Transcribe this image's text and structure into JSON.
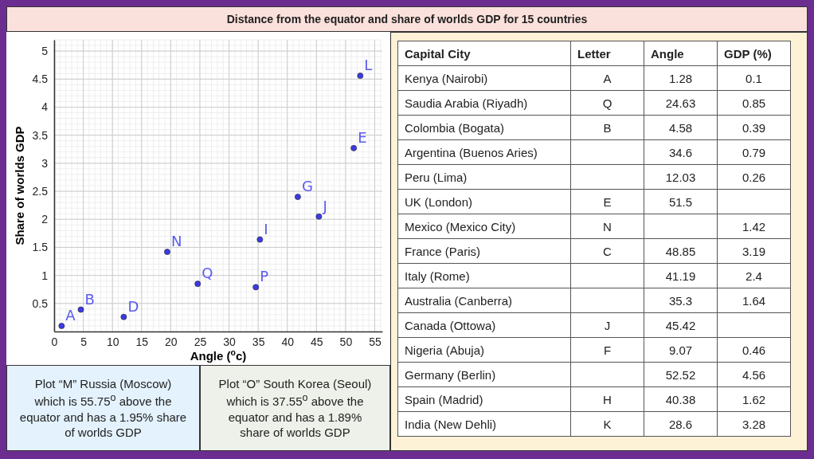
{
  "chart_data": [
    {
      "type": "scatter",
      "title": "Distance from the equator and share of worlds GDP for 15 countries",
      "xlabel": "Angle ($^{o}$c)",
      "ylabel": "Share of worlds GDP",
      "x": [
        1.28,
        4.58,
        11.94,
        19.4,
        24.63,
        34.6,
        35.3,
        41.8,
        45.42,
        51.4,
        52.52
      ],
      "values": [
        0.1,
        0.39,
        0.26,
        1.42,
        0.85,
        0.79,
        1.64,
        2.4,
        2.05,
        3.27,
        4.56
      ],
      "color": "#3b3be6",
      "marker": "circle",
      "grid": true,
      "xlim": [
        0,
        56.3
      ],
      "ylim": [
        0,
        5.2
      ],
      "xticks": [
        0,
        5,
        10,
        15,
        20,
        25,
        30,
        35,
        40,
        45,
        50,
        55
      ],
      "yticks": [
        0.5,
        1,
        1.5,
        2,
        2.5,
        3,
        3.5,
        4,
        4.5,
        5
      ],
      "annotations": [
        {
          "text": "A",
          "x": 1.28,
          "y": 0.1
        },
        {
          "text": "B",
          "x": 4.58,
          "y": 0.39
        },
        {
          "text": "D",
          "x": 11.94,
          "y": 0.26
        },
        {
          "text": "N",
          "x": 19.4,
          "y": 1.42
        },
        {
          "text": "Q",
          "x": 24.63,
          "y": 0.85
        },
        {
          "text": "P",
          "x": 34.6,
          "y": 0.79
        },
        {
          "text": "I",
          "x": 35.3,
          "y": 1.64
        },
        {
          "text": "G",
          "x": 41.8,
          "y": 2.4
        },
        {
          "text": "J",
          "x": 45.42,
          "y": 2.05
        },
        {
          "text": "E",
          "x": 51.4,
          "y": 3.27
        },
        {
          "text": "L",
          "x": 52.52,
          "y": 4.56
        },
        "Plot “M” Russia (Moscow) which is 55.75$^{o}$ above the equator and has a 1.95% share of worlds GDP",
        "Plot “O” South Korea (Seoul) which is 37.55$^{o}$ above the equator and has a 1.89% share of worlds GDP"
      ]
    },
    {
      "type": "other",
      "ylabel": "Capital City",
      "categories": [
        "Letter",
        "Angle",
        "GDP (%)"
      ],
      "y_categories": [
        "Kenya (Nairobi)",
        "Saudia Arabia (Riyadh)",
        "Colombia (Bogata)",
        "Argentina (Buenos Aries)",
        "Peru (Lima)",
        "UK (London)",
        "Mexico (Mexico City)",
        "France (Paris)",
        "Italy (Rome)",
        "Australia (Canberra)",
        "Canada (Ottowa)",
        "Nigeria (Abuja)",
        "Germany (Berlin)",
        "Spain (Madrid)",
        "India (New Dehli)"
      ],
      "cell_labels": [
        [
          "A",
          "1.28",
          "0.1"
        ],
        [
          "Q",
          "24.63",
          "0.85"
        ],
        [
          "B",
          "4.58",
          "0.39"
        ],
        [
          null,
          "34.6",
          "0.79"
        ],
        [
          null,
          "12.03",
          "0.26"
        ],
        [
          "E",
          "51.5",
          null
        ],
        [
          "N",
          null,
          "1.42"
        ],
        [
          "C",
          "48.85",
          "3.19"
        ],
        [
          null,
          "41.19",
          "2.4"
        ],
        [
          null,
          "35.3",
          "1.64"
        ],
        [
          "J",
          "45.42",
          null
        ],
        [
          "F",
          "9.07",
          "0.46"
        ],
        [
          null,
          "52.52",
          "4.56"
        ],
        [
          "H",
          "40.38",
          "1.62"
        ],
        [
          "K",
          "28.6",
          "3.28"
        ]
      ]
    }
  ]
}
